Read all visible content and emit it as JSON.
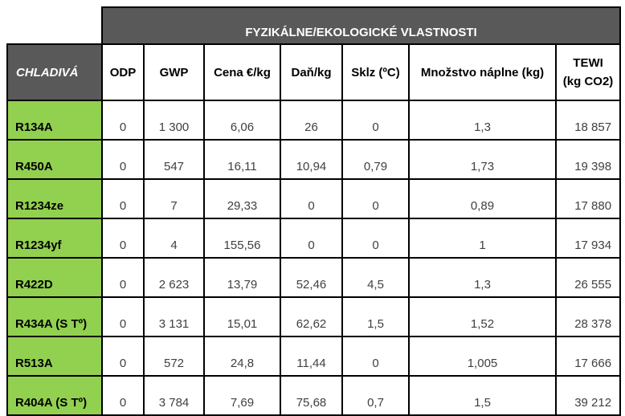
{
  "banner": {
    "title": "FYZIKÁLNE/EKOLOGICKÉ VLASTNOSTI"
  },
  "columns": {
    "row_header_title": "CHLADIVÁ",
    "odp": "ODP",
    "gwp": "GWP",
    "cena": "Cena €/kg",
    "dan": "Daň/kg",
    "sklz": "Sklz (ºC)",
    "mnozstvo": "Množstvo náplne (kg)",
    "tewi_line1": "TEWI",
    "tewi_line2": "(kg CO2)"
  },
  "colors": {
    "header_dark": "#595959",
    "row_header_green": "#92D050",
    "border_black": "#000000",
    "data_text_gray": "#404040"
  },
  "rows": [
    {
      "label": "R134A",
      "values": [
        "0",
        "1 300",
        "6,06",
        "26",
        "0",
        "1,3",
        "18 857"
      ]
    },
    {
      "label": "R450A",
      "values": [
        "0",
        "547",
        "16,11",
        "10,94",
        "0,79",
        "1,73",
        "19 398"
      ]
    },
    {
      "label": "R1234ze",
      "values": [
        "0",
        "7",
        "29,33",
        "0",
        "0",
        "0,89",
        "17 880"
      ]
    },
    {
      "label": "R1234yf",
      "values": [
        "0",
        "4",
        "155,56",
        "0",
        "0",
        "1",
        "17 934"
      ]
    },
    {
      "label": "R422D",
      "values": [
        "0",
        "2 623",
        "13,79",
        "52,46",
        "4,5",
        "1,3",
        "26 555"
      ]
    },
    {
      "label": "R434A (S Tº)",
      "values": [
        "0",
        "3 131",
        "15,01",
        "62,62",
        "1,5",
        "1,52",
        "28 378"
      ]
    },
    {
      "label": "R513A",
      "values": [
        "0",
        "572",
        "24,8",
        "11,44",
        "0",
        "1,005",
        "17 666"
      ]
    },
    {
      "label": "R404A (S Tº)",
      "values": [
        "0",
        "3 784",
        "7,69",
        "75,68",
        "0,7",
        "1,5",
        "39 212"
      ]
    }
  ]
}
